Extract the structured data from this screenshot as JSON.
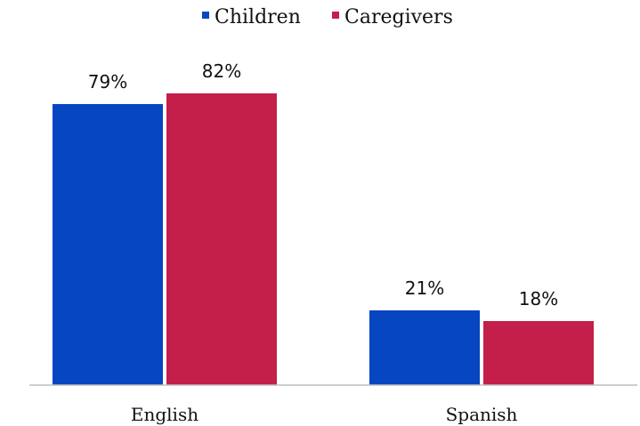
{
  "chart_data": {
    "type": "bar",
    "categories": [
      "English",
      "Spanish"
    ],
    "series": [
      {
        "name": "Children",
        "values": [
          79,
          21
        ],
        "labels": [
          "79%",
          "21%"
        ],
        "color": "#0746C1"
      },
      {
        "name": "Caregivers",
        "values": [
          82,
          18
        ],
        "labels": [
          "82%",
          "18%"
        ],
        "color": "#C41E4A"
      }
    ],
    "ylim": [
      0,
      100
    ],
    "grid": false,
    "legend_position": "top-center",
    "axis_color": "#BFBFBF"
  }
}
